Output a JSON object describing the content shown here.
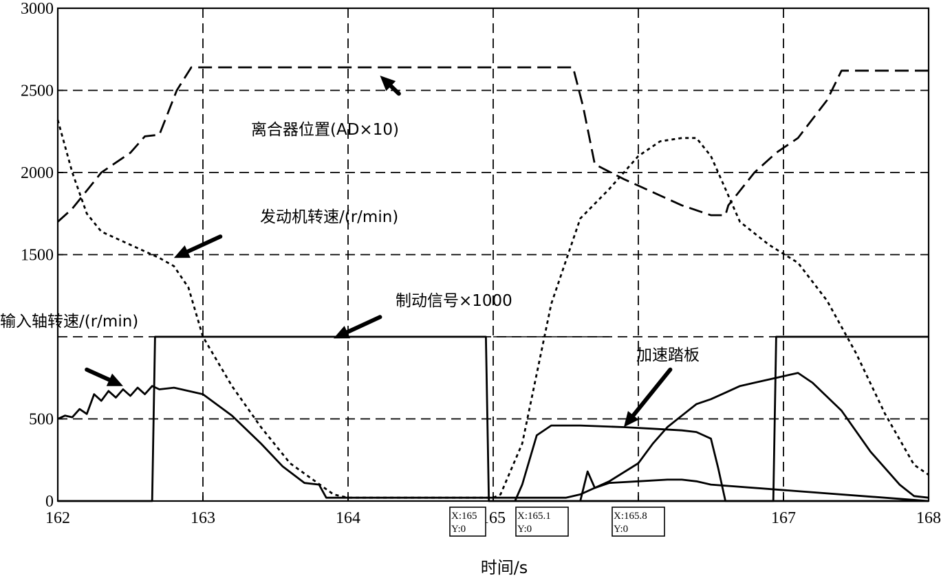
{
  "chart_data": {
    "type": "line",
    "xlabel": "时间/s",
    "xlim": [
      162,
      168
    ],
    "ylim": [
      0,
      3000
    ],
    "x_ticks": [
      162,
      163,
      164,
      165,
      166,
      167,
      168
    ],
    "x_tick_labels": [
      "162",
      "163",
      "164",
      "165",
      "",
      "167",
      "168"
    ],
    "y_ticks": [
      0,
      500,
      1500,
      2000,
      2500,
      3000
    ],
    "y_tick_labels": [
      "0",
      "500",
      "1500",
      "2000",
      "2500",
      "3000"
    ],
    "grid": true,
    "series": [
      {
        "name": "离合器位置(AD×10)",
        "style": "dashed",
        "x": [
          162.0,
          162.1,
          162.3,
          162.5,
          162.6,
          162.7,
          162.82,
          162.92,
          163.2,
          163.6,
          164.0,
          164.6,
          165.0,
          165.3,
          165.55,
          165.62,
          165.7,
          165.9,
          166.1,
          166.3,
          166.5,
          166.6,
          166.62,
          166.8,
          166.95,
          167.1,
          167.3,
          167.4,
          167.6,
          168.0
        ],
        "y": [
          1700,
          1780,
          2000,
          2120,
          2220,
          2230,
          2500,
          2640,
          2640,
          2640,
          2640,
          2640,
          2640,
          2640,
          2640,
          2400,
          2050,
          1960,
          1880,
          1800,
          1740,
          1740,
          1800,
          2000,
          2120,
          2210,
          2440,
          2620,
          2620,
          2620
        ]
      },
      {
        "name": "发动机转速/(r/min)",
        "style": "dotted",
        "x": [
          162.0,
          162.1,
          162.2,
          162.3,
          162.5,
          162.7,
          162.8,
          162.9,
          163.0,
          163.2,
          163.4,
          163.6,
          163.9,
          164.0,
          165.0,
          165.05,
          165.2,
          165.4,
          165.6,
          165.8,
          165.9,
          166.0,
          166.15,
          166.3,
          166.4,
          166.5,
          166.7,
          166.9,
          167.1,
          167.3,
          167.5,
          167.7,
          167.9,
          168.0
        ],
        "y": [
          2320,
          2000,
          1750,
          1640,
          1560,
          1480,
          1430,
          1300,
          1000,
          700,
          450,
          230,
          40,
          20,
          20,
          40,
          350,
          1200,
          1720,
          1900,
          2000,
          2100,
          2190,
          2210,
          2210,
          2100,
          1700,
          1560,
          1450,
          1220,
          900,
          530,
          220,
          160
        ]
      },
      {
        "name": "制动信号×1000",
        "style": "solid",
        "x": [
          162.0,
          162.65,
          162.67,
          164.95,
          164.97,
          166.93,
          166.95,
          168.0
        ],
        "y": [
          0,
          0,
          1000,
          1000,
          0,
          0,
          1000,
          1000
        ]
      },
      {
        "name": "输入轴转速/(r/min)",
        "style": "solid",
        "x": [
          162.0,
          162.05,
          162.1,
          162.15,
          162.2,
          162.25,
          162.3,
          162.35,
          162.4,
          162.45,
          162.5,
          162.55,
          162.6,
          162.65,
          162.7,
          162.8,
          163.0,
          163.2,
          163.4,
          163.55,
          163.7,
          163.8,
          163.85,
          164.0,
          165.0,
          165.5,
          165.6,
          165.8,
          166.0,
          166.1,
          166.2,
          166.3,
          166.4,
          166.5,
          166.6,
          166.7,
          166.8,
          166.9,
          167.0,
          167.1,
          167.2,
          167.4,
          167.6,
          167.8,
          167.9,
          168.0
        ],
        "y": [
          500,
          520,
          510,
          560,
          530,
          650,
          610,
          670,
          630,
          680,
          640,
          690,
          650,
          700,
          680,
          690,
          650,
          520,
          350,
          210,
          110,
          100,
          20,
          20,
          20,
          20,
          40,
          120,
          230,
          350,
          450,
          520,
          590,
          620,
          660,
          700,
          720,
          740,
          760,
          780,
          720,
          550,
          300,
          100,
          30,
          20
        ]
      },
      {
        "name": "加速踏板",
        "style": "solid",
        "x": [
          165.15,
          165.2,
          165.3,
          165.4,
          165.6,
          165.9,
          166.1,
          166.3,
          166.4,
          166.5,
          166.55,
          166.6,
          168.0
        ],
        "y": [
          0,
          100,
          400,
          460,
          460,
          450,
          440,
          430,
          420,
          380,
          200,
          0,
          0
        ]
      },
      {
        "name": "",
        "style": "solid",
        "x": [
          165.6,
          165.65,
          165.7,
          165.8,
          166.0,
          166.2,
          166.3,
          166.4,
          166.5,
          168.0
        ],
        "y": [
          0,
          180,
          80,
          110,
          120,
          130,
          130,
          120,
          100,
          0
        ]
      }
    ],
    "annotations": [
      {
        "text": "离合器位置(AD×10)"
      },
      {
        "text": "发动机转速/(r/min)"
      },
      {
        "text": "制动信号×1000"
      },
      {
        "text": "输入轴转速/(r/min)"
      },
      {
        "text": "加速踏板"
      }
    ],
    "datatips": [
      {
        "x_text": "X:165",
        "y_text": "Y:0",
        "x": 165.0,
        "y": 0
      },
      {
        "x_text": "X:165.1",
        "y_text": "Y:0",
        "x": 165.1,
        "y": 0
      },
      {
        "x_text": "X:165.8",
        "y_text": "Y:0",
        "x": 165.8,
        "y": 0
      }
    ]
  }
}
